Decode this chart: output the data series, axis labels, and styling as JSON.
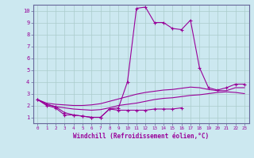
{
  "xlabel": "Windchill (Refroidissement éolien,°C)",
  "background_color": "#cce8f0",
  "grid_color": "#aacccc",
  "line_color": "#990099",
  "spine_color": "#666699",
  "xlim": [
    -0.5,
    23.5
  ],
  "ylim": [
    0.5,
    10.5
  ],
  "xticks": [
    0,
    1,
    2,
    3,
    4,
    5,
    6,
    7,
    8,
    9,
    10,
    11,
    12,
    13,
    14,
    15,
    16,
    17,
    18,
    19,
    20,
    21,
    22,
    23
  ],
  "yticks": [
    1,
    2,
    3,
    4,
    5,
    6,
    7,
    8,
    9,
    10
  ],
  "series": [
    {
      "x": [
        0,
        1,
        2,
        3,
        4,
        5,
        6,
        7,
        8,
        9,
        10,
        11,
        12,
        13,
        14,
        15,
        16
      ],
      "y": [
        2.5,
        2.0,
        1.8,
        1.2,
        1.2,
        1.1,
        1.0,
        1.0,
        1.7,
        1.6,
        1.6,
        1.6,
        1.6,
        1.7,
        1.7,
        1.7,
        1.8
      ],
      "marker": "+"
    },
    {
      "x": [
        0,
        1,
        2,
        3,
        4,
        5,
        6,
        7,
        8,
        9,
        10,
        11,
        12,
        13,
        14,
        15,
        16,
        17,
        18,
        19,
        20,
        21,
        22,
        23
      ],
      "y": [
        2.5,
        2.1,
        1.9,
        1.8,
        1.7,
        1.65,
        1.6,
        1.65,
        1.8,
        2.0,
        2.1,
        2.2,
        2.35,
        2.5,
        2.6,
        2.65,
        2.75,
        2.85,
        2.9,
        3.0,
        3.1,
        3.15,
        3.1,
        3.0
      ],
      "marker": null
    },
    {
      "x": [
        0,
        1,
        2,
        3,
        4,
        5,
        6,
        7,
        8,
        9,
        10,
        11,
        12,
        13,
        14,
        15,
        16,
        17,
        18,
        19,
        20,
        21,
        22,
        23
      ],
      "y": [
        2.5,
        2.2,
        2.1,
        2.05,
        2.0,
        2.0,
        2.05,
        2.15,
        2.35,
        2.55,
        2.75,
        2.95,
        3.1,
        3.2,
        3.3,
        3.35,
        3.45,
        3.55,
        3.5,
        3.35,
        3.25,
        3.25,
        3.5,
        3.5
      ],
      "marker": null
    },
    {
      "x": [
        0,
        1,
        2,
        3,
        4,
        5,
        6,
        7,
        8,
        9,
        10,
        11,
        12,
        13,
        14,
        15,
        16,
        17,
        18,
        19,
        20,
        21,
        22,
        23
      ],
      "y": [
        2.5,
        2.1,
        1.9,
        1.4,
        1.2,
        1.1,
        1.0,
        1.0,
        1.7,
        1.8,
        4.0,
        10.2,
        10.3,
        9.0,
        9.0,
        8.5,
        8.4,
        9.2,
        5.2,
        3.5,
        3.3,
        3.5,
        3.8,
        3.8
      ],
      "marker": "+"
    }
  ]
}
